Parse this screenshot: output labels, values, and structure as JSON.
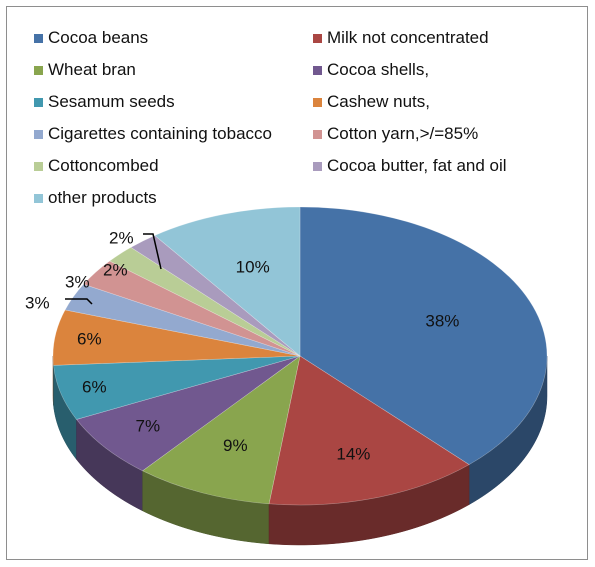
{
  "chart_data": {
    "type": "pie",
    "style": "3d-pie",
    "title": "",
    "legend_position": "top",
    "categories": [
      "Cocoa beans",
      "Milk not concentrated",
      "Wheat bran",
      "Cocoa shells,",
      "Sesamum seeds",
      "Cashew nuts,",
      "Cigarettes containing tobacco",
      "Cotton yarn,>/=85%",
      "Cottoncombed",
      "Cocoa butter, fat and oil",
      "other products"
    ],
    "values": [
      38,
      14,
      9,
      7,
      6,
      6,
      3,
      3,
      2,
      2,
      10
    ],
    "data_labels": [
      "38%",
      "14%",
      "9%",
      "7%",
      "6%",
      "6%",
      "3%",
      "3%",
      "2%",
      "2%",
      "10%"
    ],
    "colors": [
      "#4572a7",
      "#aa4643",
      "#89a54e",
      "#71588f",
      "#4198af",
      "#db843d",
      "#93a9cf",
      "#d19392",
      "#b9cd96",
      "#a99bbd",
      "#92c5d7"
    ]
  }
}
